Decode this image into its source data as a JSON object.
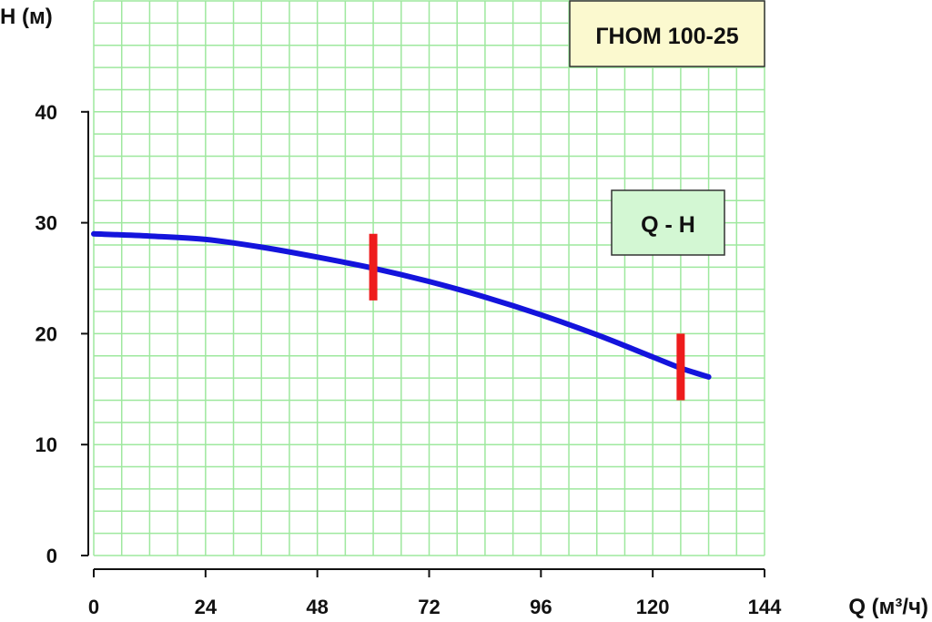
{
  "chart_data": {
    "type": "line",
    "title": "ГНОМ 100-25",
    "series": [
      {
        "name": "Q - H",
        "x": [
          0,
          12,
          24,
          36,
          48,
          60,
          72,
          84,
          96,
          108,
          120,
          126,
          132
        ],
        "y": [
          29.0,
          28.8,
          28.5,
          27.8,
          26.9,
          25.9,
          24.7,
          23.3,
          21.7,
          19.9,
          17.9,
          16.9,
          16.1
        ],
        "color": "#1414dc"
      }
    ],
    "markers": [
      {
        "x": 60,
        "y_range": [
          23,
          29
        ],
        "color": "#ee1c1c"
      },
      {
        "x": 126,
        "y_range": [
          14,
          20
        ],
        "color": "#ee1c1c"
      }
    ],
    "xlabel": "Q (м³/ч)",
    "ylabel": "H (м)",
    "xlim": [
      0,
      144
    ],
    "ylim": [
      0,
      50
    ],
    "xticks": [
      "0",
      "24",
      "48",
      "72",
      "96",
      "120",
      "144"
    ],
    "yticks": [
      "0",
      "10",
      "20",
      "30",
      "40"
    ],
    "grid": true,
    "grid_color": "#9ee89e",
    "title_box_color": "#fbf9cf",
    "legend_box_color": "#d3f7d3",
    "legend_position": "right"
  }
}
